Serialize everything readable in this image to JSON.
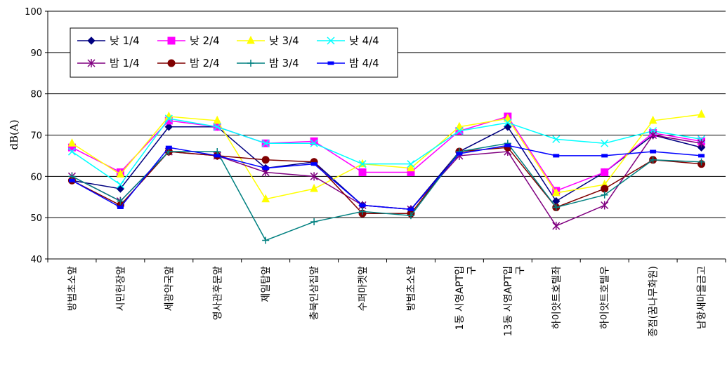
{
  "chart_data": {
    "type": "line",
    "ylabel": "dB(A)",
    "ylim": [
      40,
      100
    ],
    "yticks": [
      40,
      50,
      60,
      70,
      80,
      90,
      100
    ],
    "grid": "horizontal",
    "legend": "top-left",
    "categories": [
      [
        "방범초소앞"
      ],
      [
        "시민헌장앞"
      ],
      [
        "세광약국앞"
      ],
      [
        "영사관후문앞"
      ],
      [
        "제일탑앞"
      ],
      [
        "충북인삼집앞"
      ],
      [
        "수퍼마켓앞"
      ],
      [
        "방범초소앞"
      ],
      [
        "1동 시영APT입",
        "구"
      ],
      [
        "13동 시영APT입",
        "구"
      ],
      [
        "하이얏트호텔좌"
      ],
      [
        "하이얏트호텔우"
      ],
      [
        "종점(꿈나무화원)"
      ],
      [
        "남항새마을금고"
      ]
    ],
    "series": [
      {
        "name": "낮 1/4",
        "color": "#000080",
        "marker": "diamond",
        "values": [
          59,
          57,
          72,
          72,
          62,
          63.5,
          53,
          52,
          66,
          72,
          54,
          61,
          70,
          67
        ]
      },
      {
        "name": "낮 2/4",
        "color": "#FF00FF",
        "marker": "square",
        "values": [
          67,
          61,
          73.5,
          72,
          68,
          68.5,
          61,
          61,
          71,
          74.5,
          56.5,
          61,
          70.5,
          68.5
        ]
      },
      {
        "name": "낮 3/4",
        "color": "#FFFF00",
        "marker": "triangle",
        "values": [
          68,
          60.5,
          74.5,
          73.5,
          54.5,
          57,
          63,
          62,
          72,
          74,
          56,
          58,
          73.5,
          75
        ]
      },
      {
        "name": "낮 4/4",
        "color": "#00FFFF",
        "marker": "x",
        "values": [
          66,
          58,
          74,
          72,
          68,
          68,
          63,
          63,
          71,
          73,
          69,
          68,
          71,
          69
        ]
      },
      {
        "name": "밤 1/4",
        "color": "#800080",
        "marker": "star",
        "values": [
          60,
          54,
          66,
          65,
          61,
          60,
          53,
          52,
          65,
          66,
          48,
          53,
          70,
          68
        ]
      },
      {
        "name": "밤 2/4",
        "color": "#800000",
        "marker": "circle",
        "values": [
          59,
          53,
          66,
          65,
          64,
          63.5,
          51,
          51,
          66,
          67,
          52.5,
          57,
          64,
          63
        ]
      },
      {
        "name": "밤 3/4",
        "color": "#008080",
        "marker": "plus",
        "values": [
          60,
          54,
          66,
          66,
          44.5,
          49,
          51.5,
          50.5,
          66,
          68,
          52.5,
          55.5,
          64,
          63.5
        ]
      },
      {
        "name": "밤 4/4",
        "color": "#0000FF",
        "marker": "dash",
        "values": [
          59,
          52.5,
          67,
          65,
          62,
          63,
          53,
          52,
          65.5,
          67.5,
          65,
          65,
          66,
          65
        ]
      }
    ]
  }
}
